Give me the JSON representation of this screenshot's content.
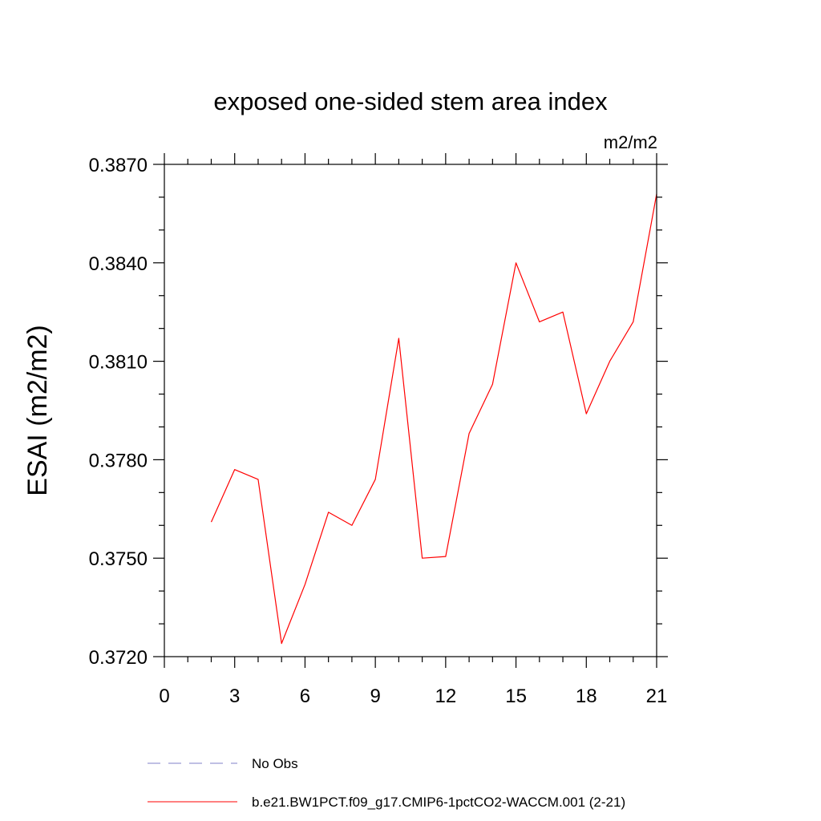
{
  "chart_data": {
    "type": "line",
    "title": "exposed one-sided stem area index",
    "units_label": "m2/m2",
    "ylabel": "ESAI  (m2/m2)",
    "xlabel": "",
    "xlim": [
      0,
      21
    ],
    "ylim": [
      0.372,
      0.387
    ],
    "x_ticks": [
      0,
      3,
      6,
      9,
      12,
      15,
      18,
      21
    ],
    "x_tick_labels": [
      "0",
      "3",
      "6",
      "9",
      "12",
      "15",
      "18",
      "21"
    ],
    "x_minor_step": 1,
    "y_ticks": [
      0.372,
      0.375,
      0.378,
      0.381,
      0.384,
      0.387
    ],
    "y_tick_labels": [
      "0.3720",
      "0.3750",
      "0.3780",
      "0.3810",
      "0.3840",
      "0.3870"
    ],
    "y_minor_step": 0.001,
    "grid": false,
    "legend_position": "bottom",
    "series": [
      {
        "name": "b.e21.BW1PCT.f09_g17.CMIP6-1pctCO2-WACCM.001 (2-21)",
        "color": "#ff0000",
        "dash": "solid",
        "x": [
          2,
          3,
          4,
          5,
          6,
          7,
          8,
          9,
          10,
          11,
          12,
          13,
          14,
          15,
          16,
          17,
          18,
          19,
          20,
          21
        ],
        "y": [
          0.3761,
          0.3777,
          0.3774,
          0.3724,
          0.3742,
          0.3764,
          0.376,
          0.3774,
          0.3817,
          0.375,
          0.37505,
          0.3788,
          0.3803,
          0.384,
          0.3822,
          0.3825,
          0.3794,
          0.381,
          0.3822,
          0.3861
        ]
      }
    ],
    "legend": [
      {
        "label": "No Obs",
        "color": "#8080c8",
        "dash": "dashed"
      },
      {
        "label": "b.e21.BW1PCT.f09_g17.CMIP6-1pctCO2-WACCM.001 (2-21)",
        "color": "#ff0000",
        "dash": "solid"
      }
    ]
  }
}
